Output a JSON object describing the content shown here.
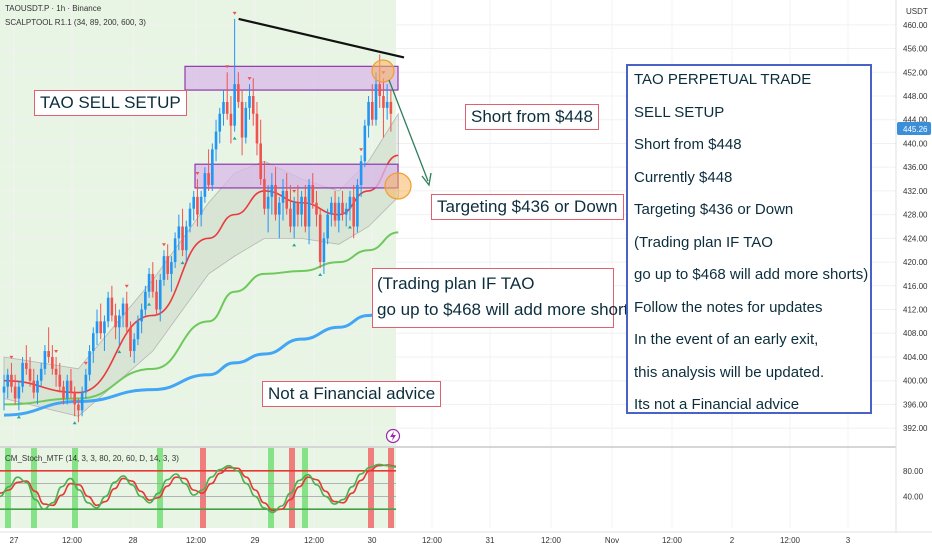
{
  "header": {
    "symbol_line": "TAOUSDT.P · 1h · Binance",
    "indicator_line": "SCALPTOOL R1.1 (34, 89, 200, 600, 3)",
    "stoch_label": "CM_Stoch_MTF (14, 3, 3, 80, 20, 60, D, 14, 3, 3)"
  },
  "price_axis": {
    "currency": "USDT",
    "current_price": "445.26",
    "current_price_color": "#3a8fd8"
  },
  "colors": {
    "bull": "#2196f3",
    "bear": "#ef5350",
    "highlight_bg": "#e9f5e4",
    "zone_fill": "#d9b8ea",
    "zone_border": "#8e3aa8",
    "ema_red": "#e83b3b",
    "ema_green": "#6ec85c",
    "ema_blue": "#42a5f5",
    "arrow": "#2e7d5b",
    "box_border": "#4a62c8"
  },
  "annotations": {
    "sell_setup": "TAO SELL SETUP",
    "short_from": "Short from $448",
    "targeting": "Targeting $436 or Down",
    "plan_line1": "(Trading plan IF TAO",
    "plan_line2": "go up to $468 will add more shorts)",
    "not_advice": "Not a Financial advice"
  },
  "side_box": {
    "lines": [
      "TAO PERPETUAL TRADE",
      "SELL SETUP",
      "Short from $448",
      "Currently $448",
      "Targeting $436 or Down",
      "(Trading plan IF TAO",
      "go up to $468 will add more shorts)",
      "Follow the notes for updates",
      "In the event of an early exit,",
      "this analysis will be updated.",
      "Its not a Financial advice"
    ]
  },
  "chart_data": {
    "type": "candlestick",
    "y_ticks": [
      392,
      396,
      400,
      404,
      408,
      412,
      416,
      420,
      424,
      428,
      432,
      436,
      440,
      444,
      448,
      452,
      456,
      460
    ],
    "y_tick_labels": [
      "392.00",
      "396.00",
      "400.00",
      "404.00",
      "408.00",
      "412.00",
      "416.00",
      "420.00",
      "424.00",
      "428.00",
      "432.00",
      "436.00",
      "440.00",
      "444.00",
      "448.00",
      "452.00",
      "456.00",
      "460.00"
    ],
    "ylim": [
      390,
      462.5
    ],
    "x_tick_labels": [
      "27",
      "12:00",
      "28",
      "12:00",
      "29",
      "12:00",
      "30",
      "12:00",
      "31",
      "12:00",
      "Nov",
      "12:00",
      "2",
      "12:00",
      "3"
    ],
    "candles": [
      [
        398,
        401,
        395,
        399
      ],
      [
        399,
        402,
        397,
        401
      ],
      [
        401,
        403,
        398,
        399
      ],
      [
        399,
        401,
        396,
        397
      ],
      [
        397,
        400,
        395,
        399
      ],
      [
        399,
        404,
        398,
        403
      ],
      [
        403,
        406,
        401,
        402
      ],
      [
        402,
        404,
        399,
        400
      ],
      [
        400,
        402,
        397,
        398
      ],
      [
        398,
        401,
        396,
        400
      ],
      [
        400,
        403,
        399,
        402
      ],
      [
        402,
        406,
        401,
        405
      ],
      [
        405,
        409,
        403,
        404
      ],
      [
        404,
        406,
        401,
        402
      ],
      [
        402,
        404,
        399,
        401
      ],
      [
        401,
        403,
        398,
        399
      ],
      [
        399,
        400,
        396,
        397
      ],
      [
        397,
        401,
        396,
        400
      ],
      [
        400,
        402,
        397,
        398
      ],
      [
        398,
        399,
        394,
        396
      ],
      [
        396,
        397,
        393,
        395
      ],
      [
        395,
        399,
        394,
        398
      ],
      [
        398,
        402,
        397,
        401
      ],
      [
        401,
        406,
        400,
        405
      ],
      [
        405,
        409,
        403,
        408
      ],
      [
        408,
        412,
        406,
        410
      ],
      [
        410,
        413,
        407,
        408
      ],
      [
        408,
        411,
        405,
        410
      ],
      [
        410,
        415,
        409,
        414
      ],
      [
        414,
        416,
        410,
        411
      ],
      [
        411,
        413,
        407,
        409
      ],
      [
        409,
        412,
        406,
        411
      ],
      [
        411,
        414,
        409,
        413
      ],
      [
        413,
        415,
        408,
        409
      ],
      [
        409,
        410,
        404,
        405
      ],
      [
        405,
        408,
        403,
        407
      ],
      [
        407,
        411,
        406,
        410
      ],
      [
        410,
        413,
        408,
        412
      ],
      [
        412,
        416,
        411,
        415
      ],
      [
        415,
        419,
        414,
        418
      ],
      [
        418,
        420,
        414,
        415
      ],
      [
        415,
        417,
        411,
        412
      ],
      [
        412,
        418,
        410,
        417
      ],
      [
        417,
        422,
        416,
        421
      ],
      [
        421,
        423,
        417,
        418
      ],
      [
        418,
        421,
        415,
        420
      ],
      [
        420,
        425,
        419,
        424
      ],
      [
        424,
        428,
        422,
        426
      ],
      [
        426,
        429,
        421,
        422
      ],
      [
        422,
        427,
        420,
        426
      ],
      [
        426,
        430,
        425,
        429
      ],
      [
        429,
        432,
        427,
        431
      ],
      [
        431,
        434,
        426,
        428
      ],
      [
        428,
        432,
        426,
        431
      ],
      [
        431,
        436,
        430,
        435
      ],
      [
        435,
        439,
        432,
        433
      ],
      [
        433,
        440,
        432,
        439
      ],
      [
        439,
        444,
        437,
        442
      ],
      [
        442,
        446,
        440,
        445
      ],
      [
        445,
        449,
        443,
        447
      ],
      [
        447,
        452,
        444,
        445
      ],
      [
        445,
        448,
        440,
        443
      ],
      [
        443,
        461,
        442,
        450
      ],
      [
        450,
        452,
        446,
        447
      ],
      [
        447,
        449,
        438,
        441
      ],
      [
        441,
        447,
        440,
        446
      ],
      [
        446,
        450,
        444,
        448
      ],
      [
        448,
        451,
        443,
        445
      ],
      [
        445,
        447,
        438,
        440
      ],
      [
        440,
        444,
        433,
        434
      ],
      [
        434,
        437,
        428,
        429
      ],
      [
        429,
        433,
        425,
        431
      ],
      [
        431,
        435,
        428,
        433
      ],
      [
        433,
        436,
        427,
        428
      ],
      [
        428,
        431,
        424,
        430
      ],
      [
        430,
        434,
        427,
        432
      ],
      [
        432,
        435,
        428,
        429
      ],
      [
        429,
        433,
        425,
        426
      ],
      [
        426,
        431,
        424,
        430
      ],
      [
        430,
        433,
        426,
        428
      ],
      [
        428,
        432,
        426,
        431
      ],
      [
        431,
        433,
        425,
        426
      ],
      [
        426,
        434,
        423,
        433
      ],
      [
        433,
        435,
        429,
        430
      ],
      [
        430,
        432,
        426,
        428
      ],
      [
        428,
        429,
        419,
        420
      ],
      [
        420,
        425,
        418,
        424
      ],
      [
        424,
        429,
        423,
        428
      ],
      [
        428,
        431,
        426,
        430
      ],
      [
        430,
        432,
        426,
        427
      ],
      [
        427,
        431,
        425,
        430
      ],
      [
        430,
        432,
        427,
        428
      ],
      [
        428,
        430,
        426,
        429
      ],
      [
        429,
        432,
        427,
        431
      ],
      [
        431,
        433,
        424,
        426
      ],
      [
        426,
        434,
        425,
        433
      ],
      [
        433,
        438,
        431,
        437
      ],
      [
        437,
        444,
        436,
        443
      ],
      [
        443,
        448,
        441,
        447
      ],
      [
        447,
        450,
        443,
        444
      ],
      [
        444,
        452,
        443,
        450
      ],
      [
        450,
        455,
        446,
        448
      ],
      [
        448,
        451,
        441,
        446
      ],
      [
        446,
        450,
        444,
        447
      ],
      [
        447,
        449,
        442,
        445
      ]
    ],
    "ema_red": [
      [
        0,
        400
      ],
      [
        20,
        398
      ],
      [
        40,
        411
      ],
      [
        55,
        424
      ],
      [
        62,
        428
      ],
      [
        70,
        432
      ],
      [
        80,
        430
      ],
      [
        90,
        428
      ],
      [
        98,
        432
      ],
      [
        106,
        438
      ]
    ],
    "ema_green": [
      [
        0,
        396
      ],
      [
        20,
        397
      ],
      [
        40,
        402
      ],
      [
        55,
        410
      ],
      [
        62,
        415
      ],
      [
        70,
        418
      ],
      [
        80,
        418.5
      ],
      [
        90,
        420
      ],
      [
        98,
        422
      ],
      [
        106,
        425
      ]
    ],
    "ema_blue": [
      [
        0,
        394.2
      ],
      [
        20,
        396.5
      ],
      [
        40,
        398.5
      ],
      [
        55,
        401
      ],
      [
        62,
        403
      ],
      [
        70,
        404.5
      ],
      [
        80,
        407
      ],
      [
        90,
        409
      ],
      [
        98,
        411
      ],
      [
        106,
        413
      ]
    ],
    "band_upper": [
      [
        0,
        404
      ],
      [
        20,
        402
      ],
      [
        40,
        417
      ],
      [
        55,
        430
      ],
      [
        62,
        435
      ],
      [
        70,
        437
      ],
      [
        80,
        434
      ],
      [
        90,
        432
      ],
      [
        98,
        437
      ],
      [
        106,
        445
      ]
    ],
    "band_lower": [
      [
        0,
        397
      ],
      [
        20,
        394
      ],
      [
        40,
        405
      ],
      [
        55,
        418
      ],
      [
        62,
        421
      ],
      [
        70,
        424
      ],
      [
        80,
        424
      ],
      [
        90,
        423
      ],
      [
        98,
        426
      ],
      [
        106,
        431
      ]
    ],
    "sell_zone": [
      449,
      453
    ],
    "buy_zone": [
      432.5,
      436.5
    ],
    "trendline": [
      [
        62,
        461
      ],
      [
        109,
        454.5
      ]
    ],
    "stoch_levels": [
      80,
      60,
      40,
      20
    ],
    "stoch_tick_labels": [
      "80.00",
      "40.00"
    ],
    "stoch_k": [
      40,
      55,
      70,
      62,
      35,
      20,
      30,
      55,
      68,
      50,
      30,
      22,
      40,
      62,
      72,
      58,
      40,
      30,
      45,
      66,
      75,
      60,
      42,
      50,
      70,
      82,
      88,
      80,
      60,
      40,
      22,
      15,
      25,
      45,
      65,
      74,
      58,
      40,
      28,
      35,
      55,
      75,
      85,
      90,
      88,
      86
    ],
    "stoch_d": [
      45,
      50,
      62,
      64,
      48,
      28,
      26,
      42,
      60,
      58,
      40,
      26,
      32,
      52,
      68,
      64,
      48,
      34,
      38,
      56,
      70,
      68,
      50,
      45,
      60,
      76,
      85,
      84,
      70,
      50,
      30,
      18,
      20,
      35,
      55,
      70,
      66,
      48,
      32,
      30,
      45,
      65,
      80,
      88,
      89,
      87
    ]
  }
}
